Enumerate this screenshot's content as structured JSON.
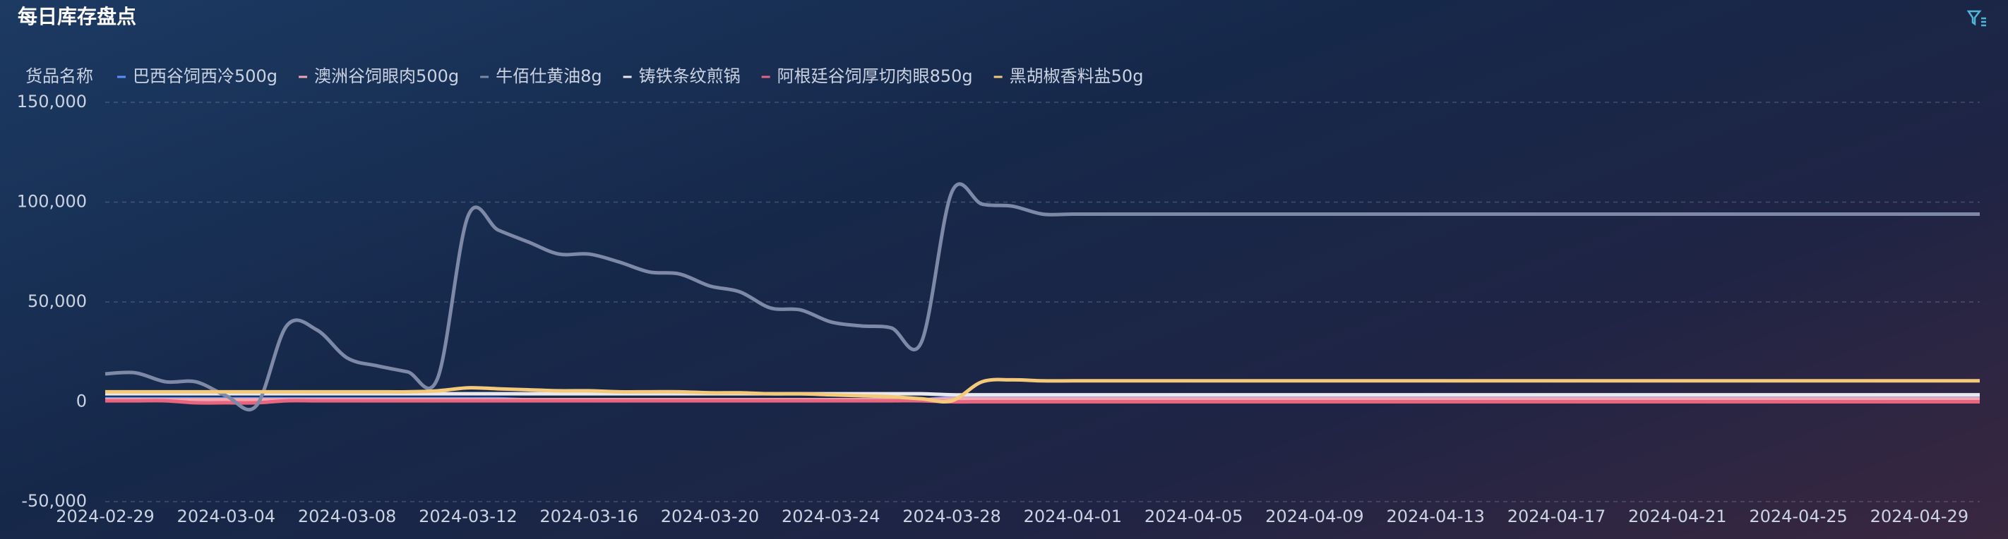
{
  "chart_data": {
    "type": "line",
    "title": "每日库存盘点",
    "legend_title": "货品名称",
    "x": [
      "2024-02-29",
      null,
      null,
      null,
      "2024-03-04",
      null,
      null,
      null,
      "2024-03-08",
      null,
      null,
      null,
      "2024-03-12",
      null,
      null,
      null,
      "2024-03-16",
      null,
      null,
      null,
      "2024-03-20",
      null,
      null,
      null,
      "2024-03-24",
      null,
      null,
      null,
      "2024-03-28",
      null,
      null,
      null,
      "2024-04-01",
      null,
      null,
      null,
      "2024-04-05",
      null,
      null,
      null,
      "2024-04-09",
      null,
      null,
      null,
      "2024-04-13",
      null,
      null,
      null,
      "2024-04-17",
      null,
      null,
      null,
      "2024-04-21",
      null,
      null,
      null,
      "2024-04-25",
      null,
      null,
      null,
      "2024-04-29",
      null,
      null
    ],
    "ylim": [
      -50000,
      150000
    ],
    "yticks": [
      {
        "value": -50000,
        "label": "-50,000"
      },
      0,
      {
        "value": 50000,
        "label": "50,000"
      },
      {
        "value": 100000,
        "label": "100,000"
      },
      {
        "value": 150000,
        "label": "150,000"
      }
    ],
    "grid": true,
    "series": [
      {
        "name": "巴西谷饲西冷500g",
        "color": "#5b8ff9",
        "values": [
          1500,
          1500,
          1500,
          1500,
          1500,
          1500,
          1500,
          1500,
          1500,
          1500,
          1500,
          1500,
          1500,
          1500,
          1000,
          1000,
          1000,
          1000,
          1000,
          1000,
          1000,
          1000,
          1000,
          1000,
          1000,
          1000,
          1000,
          1000,
          2000,
          2000,
          2000,
          2000,
          2000,
          2000,
          2000,
          2000,
          2000,
          2000,
          2000,
          2000,
          2000,
          2000,
          2000,
          2000,
          2000,
          2000,
          2000,
          2000,
          2000,
          2000,
          2000,
          2000,
          2000,
          2000,
          2000,
          2000,
          2000,
          2000,
          2000,
          2000,
          2000,
          2000,
          2000
        ]
      },
      {
        "name": "澳洲谷饲眼肉500g",
        "color": "#f4a6b0",
        "values": [
          1000,
          1000,
          1000,
          1000,
          1000,
          1000,
          1000,
          1000,
          1000,
          1000,
          1000,
          1000,
          1000,
          1000,
          1000,
          1000,
          1000,
          1000,
          1000,
          1000,
          1000,
          1000,
          1000,
          1000,
          1000,
          1000,
          1000,
          1000,
          1500,
          1500,
          1500,
          1500,
          1500,
          1500,
          1500,
          1500,
          1500,
          1500,
          1500,
          1500,
          1500,
          1500,
          1500,
          1500,
          1500,
          1500,
          1500,
          1500,
          1500,
          1500,
          1500,
          1500,
          1500,
          1500,
          1500,
          1500,
          1500,
          1500,
          1500,
          1500,
          1500,
          1500,
          1500
        ]
      },
      {
        "name": "牛佰仕黄油8g",
        "color": "#7d89a6",
        "values": [
          14000,
          14500,
          10000,
          10000,
          3000,
          -2000,
          38000,
          36000,
          22000,
          18000,
          15000,
          12000,
          93000,
          86000,
          80000,
          74000,
          74000,
          70000,
          65000,
          64000,
          58000,
          55000,
          47000,
          46000,
          40000,
          38000,
          37000,
          30000,
          105000,
          99000,
          98000,
          94000,
          94000,
          94000,
          94000,
          94000,
          94000,
          94000,
          94000,
          94000,
          94000,
          94000,
          94000,
          94000,
          94000,
          94000,
          94000,
          94000,
          94000,
          94000,
          94000,
          94000,
          94000,
          94000,
          94000,
          94000,
          94000,
          94000,
          94000,
          94000,
          94000,
          94000,
          94000
        ]
      },
      {
        "name": "铸铁条纹煎锅",
        "color": "#e8e8ee",
        "values": [
          4000,
          4000,
          4000,
          4000,
          4000,
          4000,
          4000,
          4000,
          4000,
          4000,
          4000,
          4000,
          4000,
          4000,
          4000,
          4000,
          4000,
          4000,
          4000,
          4000,
          4000,
          4000,
          4000,
          4000,
          4000,
          4000,
          4000,
          4000,
          3500,
          3500,
          3500,
          3500,
          3500,
          3500,
          3500,
          3500,
          3500,
          3500,
          3500,
          3500,
          3500,
          3500,
          3500,
          3500,
          3500,
          3500,
          3500,
          3500,
          3500,
          3500,
          3500,
          3500,
          3500,
          3500,
          3500,
          3500,
          3500,
          3500,
          3500,
          3500,
          3500,
          3500,
          3500
        ]
      },
      {
        "name": "阿根廷谷饲厚切肉眼850g",
        "color": "#e8657f",
        "values": [
          500,
          500,
          500,
          -500,
          -500,
          -500,
          500,
          500,
          500,
          500,
          500,
          500,
          500,
          500,
          500,
          500,
          500,
          500,
          500,
          500,
          500,
          500,
          500,
          500,
          500,
          500,
          500,
          500,
          0,
          0,
          0,
          0,
          0,
          0,
          0,
          0,
          0,
          0,
          0,
          0,
          0,
          0,
          0,
          0,
          0,
          0,
          0,
          0,
          0,
          0,
          0,
          0,
          0,
          0,
          0,
          0,
          0,
          0,
          0,
          0,
          0,
          0,
          0
        ]
      },
      {
        "name": "黑胡椒香料盐50g",
        "color": "#f5c97a",
        "values": [
          5000,
          5000,
          5000,
          5000,
          5000,
          5000,
          5000,
          5000,
          5000,
          5000,
          5000,
          5500,
          7000,
          6500,
          6000,
          5500,
          5500,
          5000,
          5000,
          5000,
          4500,
          4500,
          4000,
          4000,
          3500,
          3000,
          2500,
          1500,
          500,
          10000,
          11000,
          10500,
          10500,
          10500,
          10500,
          10500,
          10500,
          10500,
          10500,
          10500,
          10500,
          10500,
          10500,
          10500,
          10500,
          10500,
          10500,
          10500,
          10500,
          10500,
          10500,
          10500,
          10500,
          10500,
          10500,
          10500,
          10500,
          10500,
          10500,
          10500,
          10500,
          10500,
          10500
        ]
      }
    ]
  }
}
